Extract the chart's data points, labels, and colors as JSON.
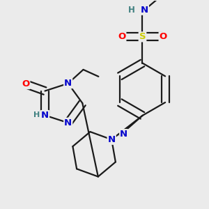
{
  "bg_color": "#ebebeb",
  "atom_colors": {
    "C": "#000000",
    "N": "#0000cc",
    "O": "#ff0000",
    "S": "#cccc00",
    "H": "#408080"
  },
  "bond_color": "#1a1a1a",
  "bond_width": 1.6,
  "font_size": 8.5
}
